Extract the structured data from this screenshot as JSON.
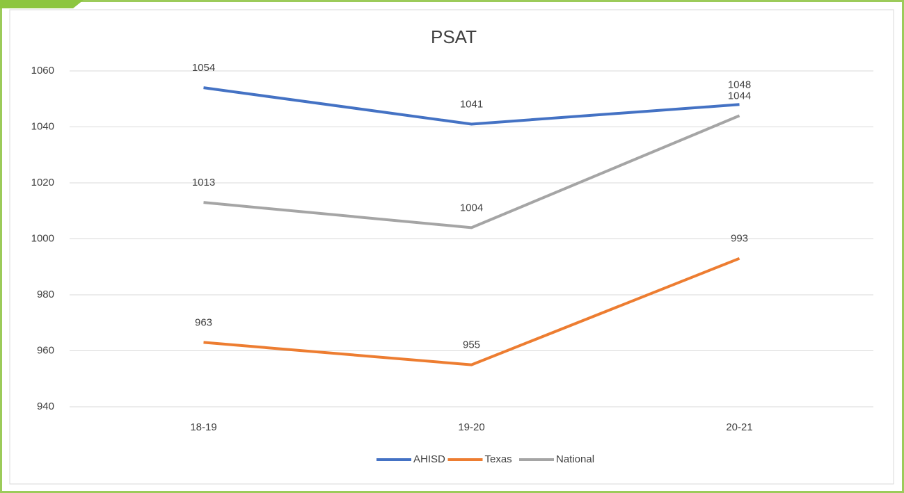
{
  "chart_data": {
    "type": "line",
    "title": "PSAT",
    "categories": [
      "18-19",
      "19-20",
      "20-21"
    ],
    "series": [
      {
        "name": "AHISD",
        "color": "#4472c4",
        "values": [
          1054,
          1041,
          1048
        ]
      },
      {
        "name": "Texas",
        "color": "#ed7d31",
        "values": [
          963,
          955,
          993
        ]
      },
      {
        "name": "National",
        "color": "#a5a5a5",
        "values": [
          1013,
          1004,
          1044
        ]
      }
    ],
    "ylim": [
      940,
      1060
    ],
    "yticks": [
      940,
      960,
      980,
      1000,
      1020,
      1040,
      1060
    ],
    "grid": true,
    "data_labels": true,
    "legend": "bottom"
  }
}
